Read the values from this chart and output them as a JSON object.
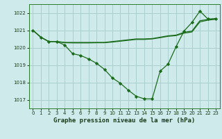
{
  "title": "Graphe pression niveau de la mer (hPa)",
  "background_color": "#ceeaea",
  "grid_color": "#aacece",
  "line_color": "#1a6b1a",
  "marker_color": "#1a6b1a",
  "xlim": [
    -0.5,
    23.5
  ],
  "ylim": [
    1016.5,
    1022.5
  ],
  "yticks": [
    1017,
    1018,
    1019,
    1020,
    1021,
    1022
  ],
  "xticks": [
    0,
    1,
    2,
    3,
    4,
    5,
    6,
    7,
    8,
    9,
    10,
    11,
    12,
    13,
    14,
    15,
    16,
    17,
    18,
    19,
    20,
    21,
    22,
    23
  ],
  "series1_x": [
    0,
    1,
    2,
    3,
    4,
    5,
    6,
    7,
    8,
    9,
    10,
    11,
    12,
    13,
    14,
    15,
    16,
    17,
    18,
    19,
    20,
    21,
    22,
    23
  ],
  "series1_y": [
    1021.0,
    1020.6,
    1020.35,
    1020.35,
    1020.15,
    1019.65,
    1019.55,
    1019.35,
    1019.1,
    1018.75,
    1018.25,
    1017.95,
    1017.55,
    1017.2,
    1017.05,
    1017.05,
    1018.65,
    1019.05,
    1020.05,
    1020.95,
    1021.45,
    1022.1,
    1021.65,
    1021.65
  ],
  "series2_x": [
    0,
    1,
    2,
    3,
    4,
    5,
    6,
    7,
    8,
    9,
    10,
    11,
    12,
    13,
    14,
    15,
    16,
    17,
    18,
    19,
    20,
    21,
    22,
    23
  ],
  "series2_y": [
    1021.0,
    1020.6,
    1020.35,
    1020.35,
    1020.3,
    1020.3,
    1020.3,
    1020.3,
    1020.3,
    1020.3,
    1020.35,
    1020.4,
    1020.45,
    1020.5,
    1020.5,
    1020.52,
    1020.6,
    1020.68,
    1020.72,
    1020.88,
    1020.95,
    1021.55,
    1021.62,
    1021.68
  ],
  "series3_x": [
    0,
    1,
    2,
    3,
    4,
    5,
    6,
    7,
    8,
    9,
    10,
    11,
    12,
    13,
    14,
    15,
    16,
    17,
    18,
    19,
    20,
    21,
    22,
    23
  ],
  "series3_y": [
    1021.0,
    1020.6,
    1020.35,
    1020.35,
    1020.28,
    1020.27,
    1020.27,
    1020.27,
    1020.28,
    1020.28,
    1020.32,
    1020.37,
    1020.42,
    1020.47,
    1020.47,
    1020.5,
    1020.57,
    1020.65,
    1020.69,
    1020.83,
    1020.9,
    1021.48,
    1021.58,
    1021.63
  ],
  "ylabel_fontsize": 5.5,
  "xlabel_fontsize": 6.5,
  "tick_fontsize": 5,
  "title_color": "#1a3a1a"
}
